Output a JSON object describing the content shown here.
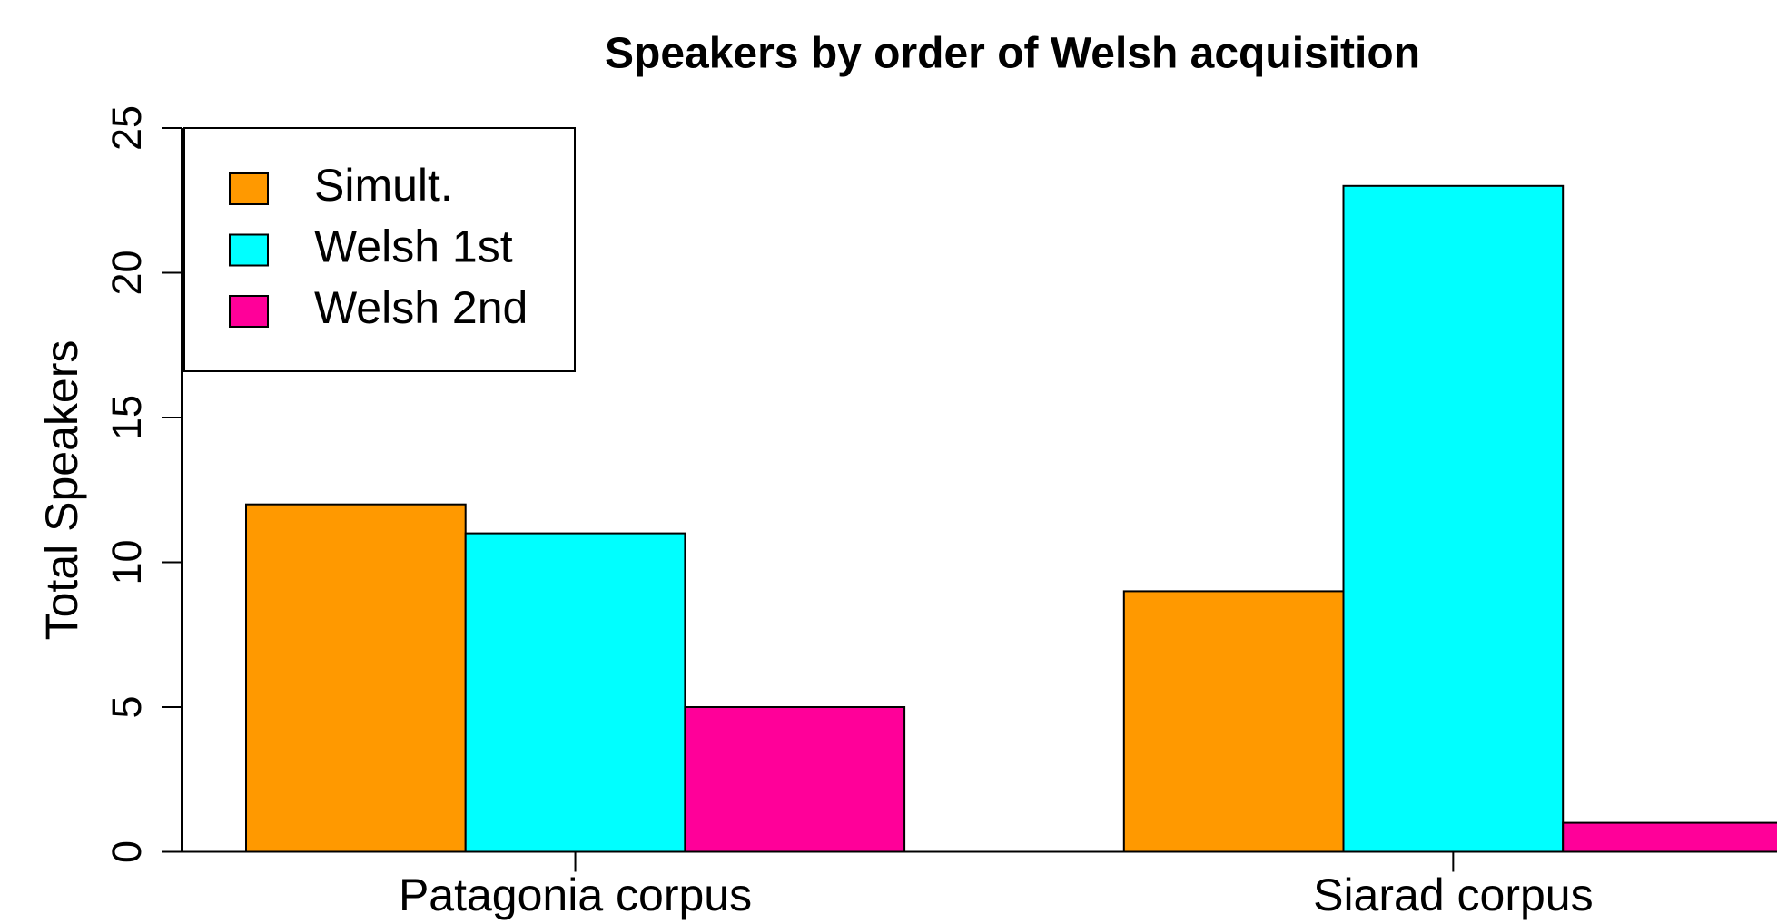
{
  "chart_data": {
    "type": "bar",
    "title": "Speakers by order of Welsh acquisition",
    "ylabel": "Total Speakers",
    "categories": [
      "Patagonia corpus",
      "Siarad corpus"
    ],
    "series": [
      {
        "name": "Simult.",
        "color": "#ff9900",
        "values": [
          12,
          9
        ]
      },
      {
        "name": "Welsh 1st",
        "color": "#00ffff",
        "values": [
          11,
          23
        ]
      },
      {
        "name": "Welsh 2nd",
        "color": "#ff0099",
        "values": [
          5,
          1
        ]
      }
    ],
    "ylim": [
      0,
      25
    ],
    "yticks": [
      0,
      5,
      10,
      15,
      20,
      25
    ],
    "legend": "top-left"
  }
}
